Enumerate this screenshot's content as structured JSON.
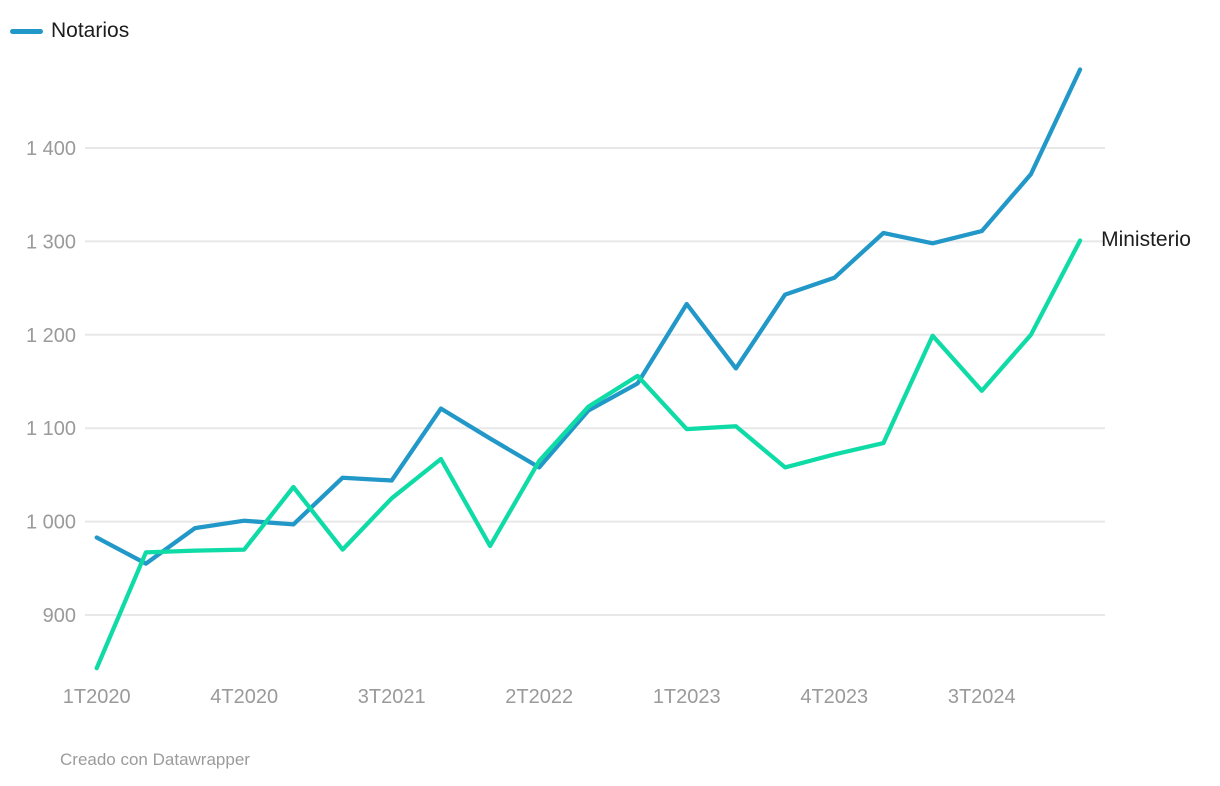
{
  "legend": {
    "items": [
      {
        "label": "Notarios",
        "color": "#2298c9"
      }
    ]
  },
  "footer": {
    "text": "Creado con Datawrapper"
  },
  "colors": {
    "notarios_line": "#2298c9",
    "ministerio_line": "#0edba5",
    "gridline": "#e8e8e8",
    "tick_label": "#9a9a9a",
    "text": "#1d1d1d",
    "background": "#ffffff"
  },
  "chart_data": {
    "type": "line",
    "title": "",
    "xlabel": "",
    "ylabel": "",
    "grid": "horizontal",
    "legend_position": "top-left",
    "x": [
      "1T2020",
      "2T2020",
      "3T2020",
      "4T2020",
      "1T2021",
      "2T2021",
      "3T2021",
      "4T2021",
      "1T2022",
      "2T2022",
      "3T2022",
      "4T2022",
      "1T2023",
      "2T2023",
      "3T2023",
      "4T2023",
      "1T2024",
      "2T2024",
      "3T2024",
      "4T2024",
      "1T2025"
    ],
    "x_tick_indices": [
      0,
      3,
      6,
      9,
      12,
      15,
      18
    ],
    "x_tick_labels": [
      "1T2020",
      "4T2020",
      "3T2021",
      "2T2022",
      "1T2023",
      "4T2023",
      "3T2024"
    ],
    "yticks": [
      900,
      1000,
      1100,
      1200,
      1300,
      1400
    ],
    "ytick_labels": [
      "900",
      "1 000",
      "1 100",
      "1 200",
      "1 300",
      "1 400"
    ],
    "ylim": [
      835,
      1495
    ],
    "series": [
      {
        "name": "Notarios",
        "color": "#2298c9",
        "values": [
          983,
          955,
          993,
          1001,
          997,
          1047,
          1044,
          1121,
          1089,
          1058,
          1119,
          1148,
          1233,
          1164,
          1243,
          1261,
          1309,
          1298,
          1311,
          1372,
          1484
        ]
      },
      {
        "name": "Ministerio",
        "color": "#0edba5",
        "values": [
          843,
          967,
          969,
          970,
          1037,
          970,
          1025,
          1067,
          974,
          1065,
          1123,
          1156,
          1099,
          1102,
          1058,
          1072,
          1084,
          1199,
          1140,
          1200,
          1301
        ]
      }
    ]
  }
}
